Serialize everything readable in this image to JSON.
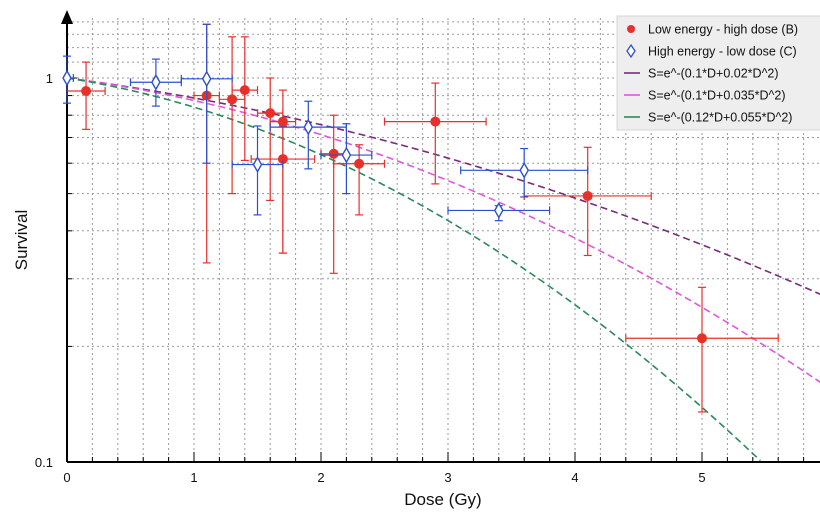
{
  "chart_data": {
    "type": "scatter",
    "title": "",
    "xlabel": "Dose (Gy)",
    "ylabel": "Survival",
    "xlim": [
      0,
      5.95
    ],
    "ylim": [
      0.1,
      1.45
    ],
    "yscale": "log",
    "grid": true,
    "legend_position": "top-right",
    "x_ticks": [
      0,
      1,
      2,
      3,
      4,
      5
    ],
    "x_tick_labels": [
      "0",
      "1",
      "2",
      "3",
      "4",
      "5"
    ],
    "y_ticks": [
      0.1,
      1
    ],
    "y_tick_labels": [
      "0.1",
      "1"
    ],
    "series": [
      {
        "name": "Low energy - high dose (B)",
        "kind": "points",
        "marker": "circle",
        "color": "#e8302a",
        "points": [
          {
            "x": 0.15,
            "y": 0.925,
            "xerr": 0.15,
            "ylo": 0.735,
            "yhi": 1.1
          },
          {
            "x": 1.1,
            "y": 0.9,
            "xerr": 0.1,
            "ylo": 0.33,
            "yhi": 1.38
          },
          {
            "x": 1.3,
            "y": 0.88,
            "xerr": 0.1,
            "ylo": 0.5,
            "yhi": 1.28
          },
          {
            "x": 1.4,
            "y": 0.93,
            "xerr": 0.1,
            "ylo": 0.61,
            "yhi": 1.28
          },
          {
            "x": 1.6,
            "y": 0.81,
            "xerr": 0.1,
            "ylo": 0.48,
            "yhi": 1.0
          },
          {
            "x": 1.7,
            "y": 0.77,
            "xerr": 0.1,
            "ylo": 0.35,
            "yhi": 0.93
          },
          {
            "x": 1.7,
            "y": 0.615,
            "xerr": 0.25,
            "ylo": 0.35,
            "yhi": 0.75
          },
          {
            "x": 2.1,
            "y": 0.635,
            "xerr": 0.1,
            "ylo": 0.31,
            "yhi": 0.8
          },
          {
            "x": 2.3,
            "y": 0.598,
            "xerr": 0.2,
            "ylo": 0.44,
            "yhi": 0.67
          },
          {
            "x": 2.9,
            "y": 0.77,
            "xerr": 0.4,
            "ylo": 0.53,
            "yhi": 0.97
          },
          {
            "x": 4.1,
            "y": 0.493,
            "xerr": 0.5,
            "ylo": 0.345,
            "yhi": 0.66
          },
          {
            "x": 5.0,
            "y": 0.21,
            "xerr": 0.6,
            "ylo": 0.135,
            "yhi": 0.285
          }
        ]
      },
      {
        "name": "High energy - low dose (C)",
        "kind": "points",
        "marker": "diamond",
        "color": "#2a4fcf",
        "points": [
          {
            "x": 0.0,
            "y": 1.0,
            "xerr": 0.05,
            "ylo": 0.86,
            "yhi": 1.14
          },
          {
            "x": 0.7,
            "y": 0.975,
            "xerr": 0.2,
            "ylo": 0.845,
            "yhi": 1.12
          },
          {
            "x": 1.1,
            "y": 0.995,
            "xerr": 0.2,
            "ylo": 0.6,
            "yhi": 1.38
          },
          {
            "x": 1.5,
            "y": 0.595,
            "xerr": 0.2,
            "ylo": 0.44,
            "yhi": 0.75
          },
          {
            "x": 1.9,
            "y": 0.745,
            "xerr": 0.3,
            "ylo": 0.58,
            "yhi": 0.87
          },
          {
            "x": 2.2,
            "y": 0.63,
            "xerr": 0.2,
            "ylo": 0.5,
            "yhi": 0.76
          },
          {
            "x": 3.4,
            "y": 0.452,
            "xerr": 0.4,
            "ylo": 0.425,
            "yhi": 0.465
          },
          {
            "x": 3.6,
            "y": 0.575,
            "xerr": 0.5,
            "ylo": 0.49,
            "yhi": 0.655
          }
        ]
      },
      {
        "name": "S=e^-(0.1*D+0.02*D^2)",
        "kind": "curve",
        "color": "#7a2a7a",
        "alpha": 0.1,
        "beta": 0.02
      },
      {
        "name": "S=e^-(0.1*D+0.035*D^2)",
        "kind": "curve",
        "color": "#e055e0",
        "alpha": 0.1,
        "beta": 0.035
      },
      {
        "name": "S=e^-(0.12*D+0.055*D^2)",
        "kind": "curve",
        "color": "#2a8a5a",
        "alpha": 0.12,
        "beta": 0.055
      }
    ]
  }
}
